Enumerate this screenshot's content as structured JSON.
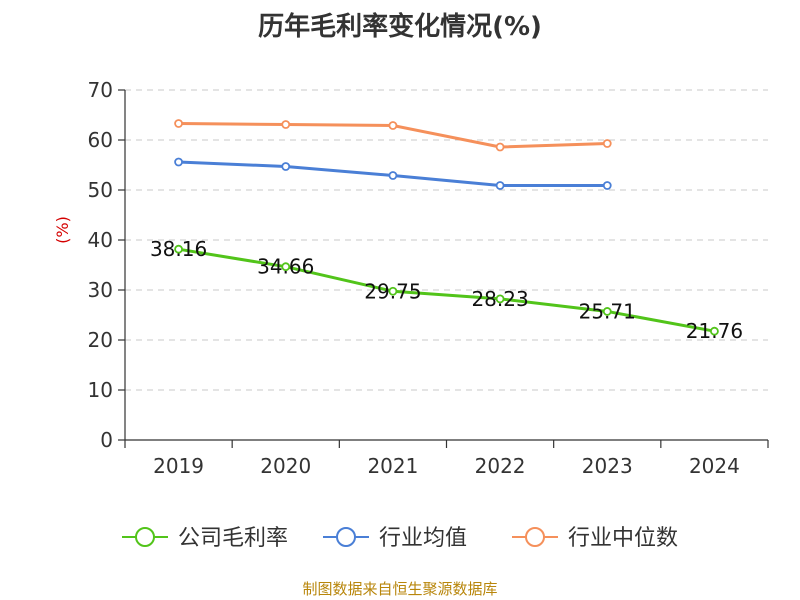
{
  "title": "历年毛利率变化情况(%)",
  "source": "制图数据来自恒生聚源数据库",
  "chart_data": {
    "type": "line",
    "categories": [
      "2019",
      "2020",
      "2021",
      "2022",
      "2023",
      "2024"
    ],
    "ylabel": "(%)",
    "ylim": [
      0,
      70
    ],
    "yticks": [
      0,
      10,
      20,
      30,
      40,
      50,
      60,
      70
    ],
    "grid": true,
    "legend_position": "bottom",
    "series": [
      {
        "name": "公司毛利率",
        "color": "#52c41a",
        "values": [
          38.16,
          34.66,
          29.75,
          28.23,
          25.71,
          21.76
        ],
        "labels": [
          "38.16",
          "34.66",
          "29.75",
          "28.23",
          "25.71",
          "21.76"
        ]
      },
      {
        "name": "行业均值",
        "color": "#4a7fd6",
        "values": [
          55.6,
          54.7,
          52.9,
          50.9,
          50.9,
          null
        ]
      },
      {
        "name": "行业中位数",
        "color": "#f5905b",
        "values": [
          63.3,
          63.1,
          62.9,
          58.6,
          59.3,
          null
        ]
      }
    ]
  }
}
